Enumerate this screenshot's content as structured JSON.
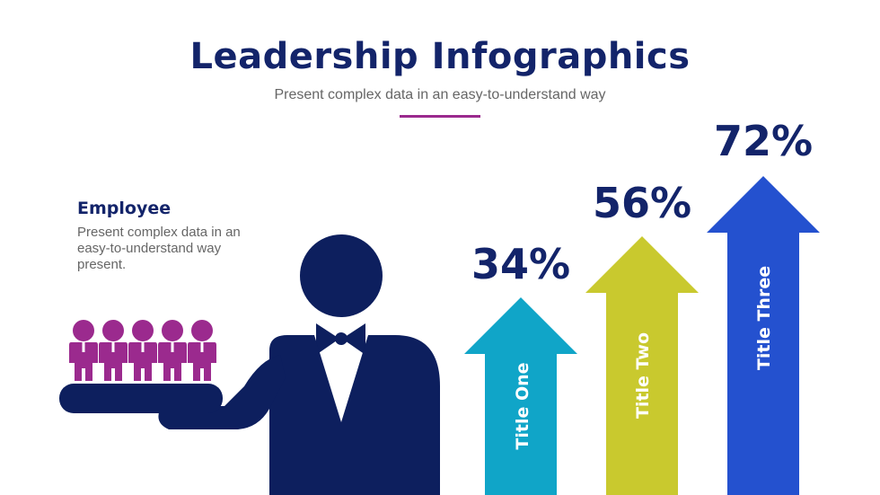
{
  "header": {
    "title": "Leadership Infographics",
    "subtitle": "Present complex data in an easy-to-understand way",
    "accent_color": "#9b2a8e"
  },
  "employee": {
    "heading": "Employee",
    "description": "Present complex data in an easy-to-understand way present."
  },
  "arrows": [
    {
      "label": "Title One",
      "value": "34%",
      "color": "#10a5c8"
    },
    {
      "label": "Title Two",
      "value": "56%",
      "color": "#c9c92e"
    },
    {
      "label": "Title Three",
      "value": "72%",
      "color": "#2451cf"
    }
  ],
  "illustration": {
    "leader_color": "#0d1f5e",
    "team_color": "#9b2a8e",
    "team_count": 5
  }
}
